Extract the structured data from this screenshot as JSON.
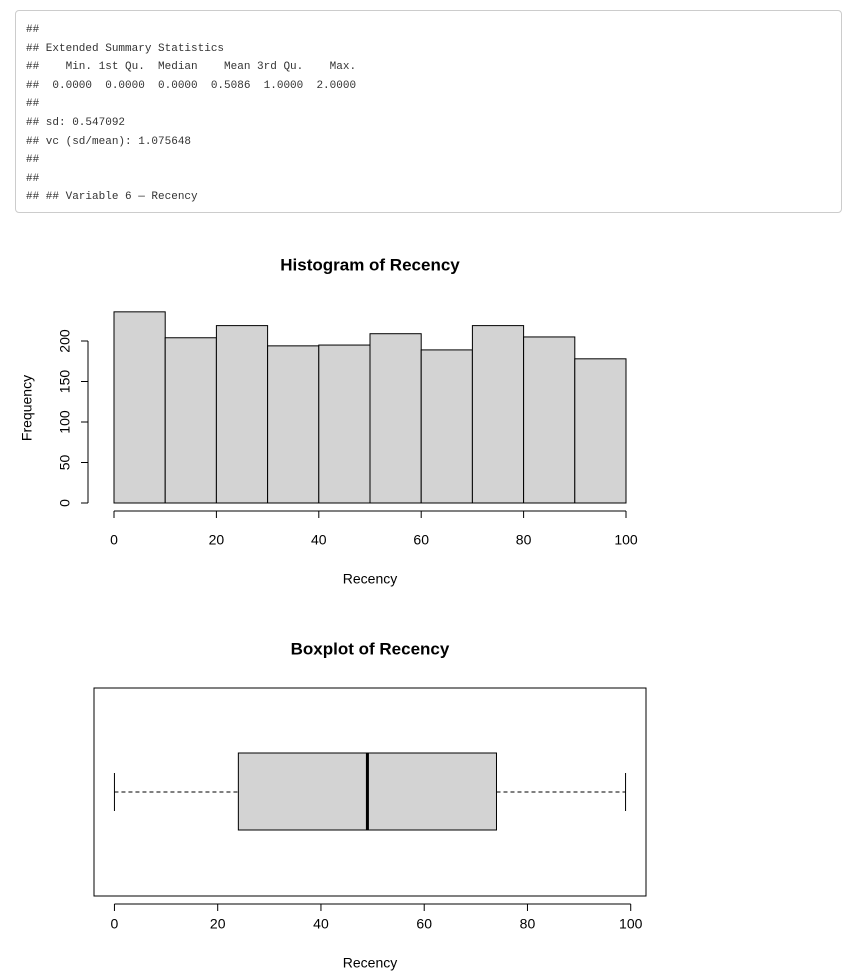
{
  "console": {
    "lines": [
      "##",
      "## Extended Summary Statistics",
      "##    Min. 1st Qu.  Median    Mean 3rd Qu.    Max. ",
      "##  0.0000  0.0000  0.0000  0.5086  1.0000  2.0000 ",
      "##",
      "## sd: 0.547092",
      "## vc (sd/mean): 1.075648",
      "##",
      "##",
      "## ## Variable 6 — Recency"
    ]
  },
  "chart_data": [
    {
      "type": "histogram",
      "title": "Histogram of Recency",
      "xlabel": "Recency",
      "ylabel": "Frequency",
      "bins": [
        0,
        10,
        20,
        30,
        40,
        50,
        60,
        70,
        80,
        90,
        100
      ],
      "values": [
        236,
        204,
        219,
        194,
        195,
        209,
        189,
        219,
        205,
        178
      ],
      "color": "#d3d3d3",
      "xlim": [
        0,
        100
      ],
      "xticks": [
        0,
        20,
        40,
        60,
        80,
        100
      ],
      "ylim": [
        0,
        236
      ],
      "yticks": [
        0,
        50,
        100,
        150,
        200
      ]
    },
    {
      "type": "boxplot",
      "title": "Boxplot of Recency",
      "xlabel": "Recency",
      "min": 0,
      "q1": 24,
      "median": 49,
      "q3": 74,
      "max": 99,
      "color": "#d3d3d3",
      "xlim": [
        -3.96,
        102.96
      ],
      "xticks": [
        0,
        20,
        40,
        60,
        80,
        100
      ]
    }
  ]
}
